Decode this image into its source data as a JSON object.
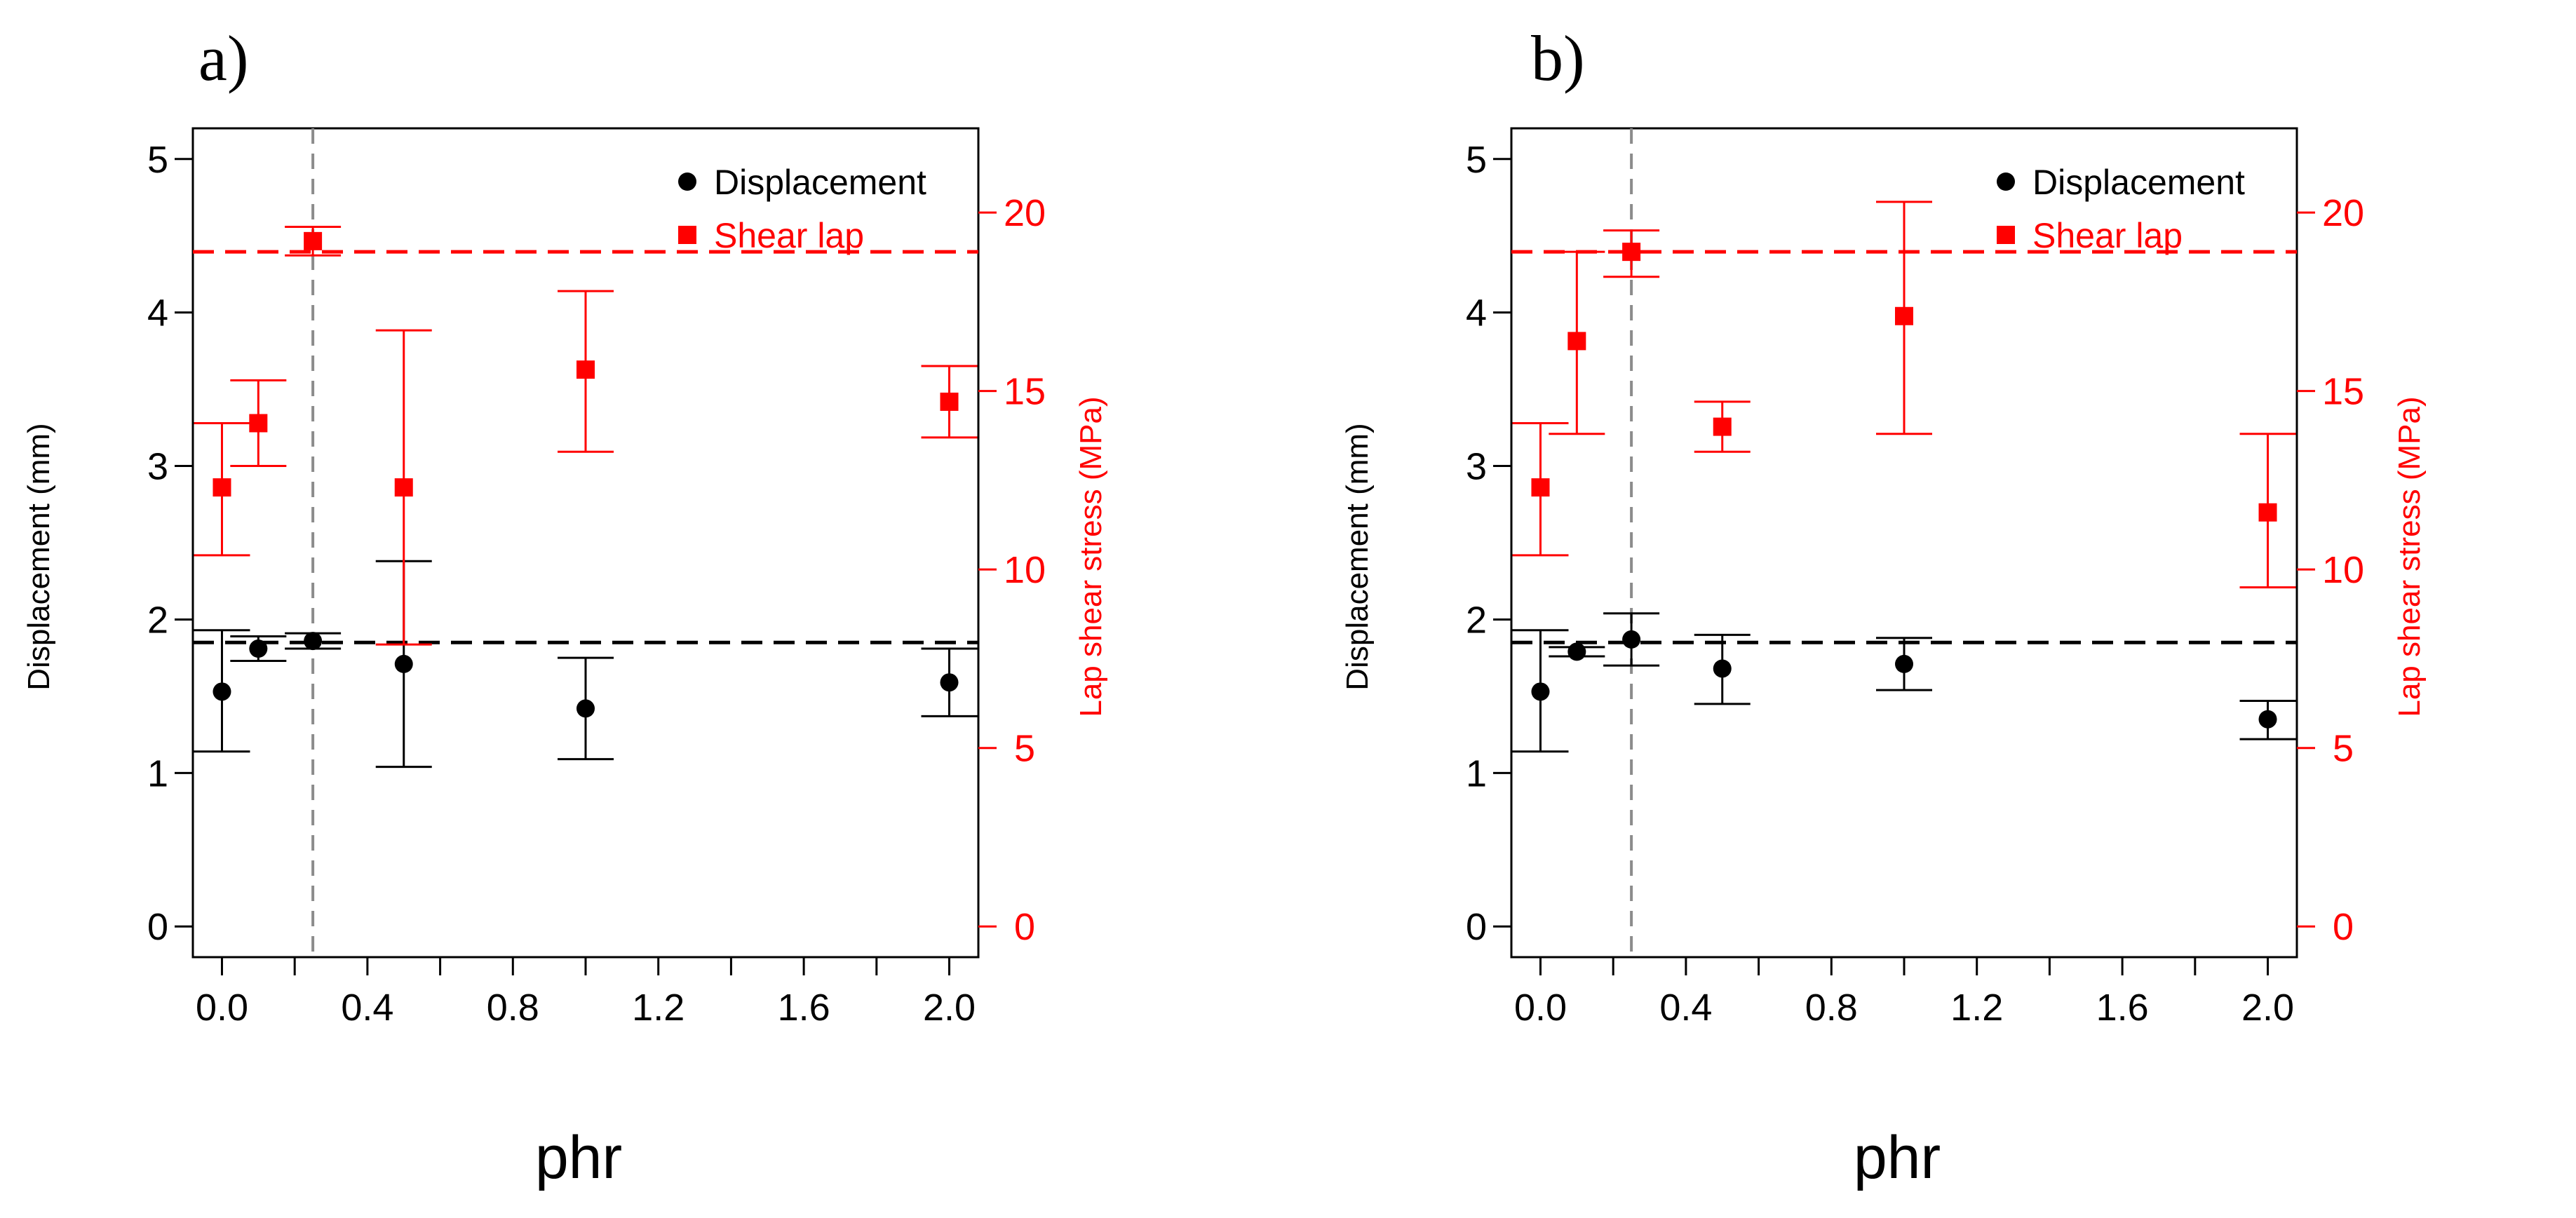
{
  "chart_data": [
    {
      "type": "scatter",
      "panel_label": "a)",
      "xlabel": "phr",
      "ylabel": "Displacement (mm)",
      "y2label": "Lap shear stress (MPa)",
      "xlim": [
        -0.08,
        2.08
      ],
      "ylim": [
        -0.2,
        5.2
      ],
      "y2lim": [
        -0.86,
        22.36
      ],
      "xticks": [
        0.0,
        0.4,
        0.8,
        1.2,
        1.6,
        2.0
      ],
      "xtick_labels": [
        "0.0",
        "0.4",
        "0.8",
        "1.2",
        "1.6",
        "2.0"
      ],
      "yticks": [
        0,
        1,
        2,
        3,
        4,
        5
      ],
      "ytick_labels": [
        "0",
        "1",
        "2",
        "3",
        "4",
        "5"
      ],
      "y2ticks": [
        0,
        5,
        10,
        15,
        20
      ],
      "y2tick_labels": [
        "0",
        "5",
        "10",
        "15",
        "20"
      ],
      "vline_x": 0.25,
      "hline_displacement": 1.85,
      "hline_shear": 18.9,
      "legend": {
        "position": "top-right",
        "entries": [
          "Displacement",
          "Shear lap"
        ]
      },
      "series": [
        {
          "name": "Displacement",
          "axis": "left",
          "x": [
            0.0,
            0.1,
            0.25,
            0.5,
            1.0,
            2.0
          ],
          "values": [
            1.53,
            1.81,
            1.86,
            1.71,
            1.42,
            1.59
          ],
          "err_low": [
            1.14,
            1.73,
            1.81,
            1.04,
            1.09,
            1.37
          ],
          "err_high": [
            1.93,
            1.89,
            1.91,
            2.38,
            1.75,
            1.81
          ]
        },
        {
          "name": "Shear lap",
          "axis": "right",
          "x": [
            0.0,
            0.1,
            0.25,
            0.5,
            1.0,
            2.0
          ],
          "values": [
            12.3,
            14.1,
            19.2,
            12.3,
            15.6,
            14.7
          ],
          "err_low": [
            10.4,
            12.9,
            18.8,
            7.9,
            13.3,
            13.7
          ],
          "err_high": [
            14.1,
            15.3,
            19.6,
            16.7,
            17.8,
            15.7
          ]
        }
      ]
    },
    {
      "type": "scatter",
      "panel_label": "b)",
      "xlabel": "phr",
      "ylabel": "Displacement (mm)",
      "y2label": "Lap shear stress (MPa)",
      "xlim": [
        -0.08,
        2.08
      ],
      "ylim": [
        -0.2,
        5.2
      ],
      "y2lim": [
        -0.86,
        22.36
      ],
      "xticks": [
        0.0,
        0.4,
        0.8,
        1.2,
        1.6,
        2.0
      ],
      "xtick_labels": [
        "0.0",
        "0.4",
        "0.8",
        "1.2",
        "1.6",
        "2.0"
      ],
      "yticks": [
        0,
        1,
        2,
        3,
        4,
        5
      ],
      "ytick_labels": [
        "0",
        "1",
        "2",
        "3",
        "4",
        "5"
      ],
      "y2ticks": [
        0,
        5,
        10,
        15,
        20
      ],
      "y2tick_labels": [
        "0",
        "5",
        "10",
        "15",
        "20"
      ],
      "vline_x": 0.25,
      "hline_displacement": 1.85,
      "hline_shear": 18.9,
      "legend": {
        "position": "top-right",
        "entries": [
          "Displacement",
          "Shear lap"
        ]
      },
      "series": [
        {
          "name": "Displacement",
          "axis": "left",
          "x": [
            0.0,
            0.1,
            0.25,
            0.5,
            1.0,
            2.0
          ],
          "values": [
            1.53,
            1.79,
            1.87,
            1.68,
            1.71,
            1.35
          ],
          "err_low": [
            1.14,
            1.76,
            1.7,
            1.45,
            1.54,
            1.22
          ],
          "err_high": [
            1.93,
            1.82,
            2.04,
            1.9,
            1.88,
            1.47
          ]
        },
        {
          "name": "Shear lap",
          "axis": "right",
          "x": [
            0.0,
            0.1,
            0.25,
            0.5,
            1.0,
            2.0
          ],
          "values": [
            12.3,
            16.4,
            18.9,
            14.0,
            17.1,
            11.6
          ],
          "err_low": [
            10.4,
            13.8,
            18.2,
            13.3,
            13.8,
            9.5
          ],
          "err_high": [
            14.1,
            18.9,
            19.5,
            14.7,
            20.3,
            13.8
          ]
        }
      ]
    }
  ],
  "colors": {
    "displacement": "#000000",
    "shear": "#ff0000",
    "vline": "#8c8c8c",
    "axis_right": "#ff0000"
  }
}
